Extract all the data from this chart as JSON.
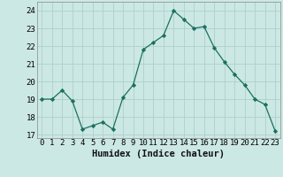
{
  "x": [
    0,
    1,
    2,
    3,
    4,
    5,
    6,
    7,
    8,
    9,
    10,
    11,
    12,
    13,
    14,
    15,
    16,
    17,
    18,
    19,
    20,
    21,
    22,
    23
  ],
  "y": [
    19,
    19,
    19.5,
    18.9,
    17.3,
    17.5,
    17.7,
    17.3,
    19.1,
    19.8,
    21.8,
    22.2,
    22.6,
    24.0,
    23.5,
    23.0,
    23.1,
    21.9,
    21.1,
    20.4,
    19.8,
    19.0,
    18.7,
    17.2
  ],
  "xlabel": "Humidex (Indice chaleur)",
  "ylim": [
    16.8,
    24.5
  ],
  "xlim": [
    -0.5,
    23.5
  ],
  "yticks": [
    17,
    18,
    19,
    20,
    21,
    22,
    23,
    24
  ],
  "xticks": [
    0,
    1,
    2,
    3,
    4,
    5,
    6,
    7,
    8,
    9,
    10,
    11,
    12,
    13,
    14,
    15,
    16,
    17,
    18,
    19,
    20,
    21,
    22,
    23
  ],
  "line_color": "#1a7060",
  "marker_color": "#1a7060",
  "bg_color": "#cce8e4",
  "grid_color": "#aed0cc",
  "label_fontsize": 7.5,
  "tick_fontsize": 6.5
}
